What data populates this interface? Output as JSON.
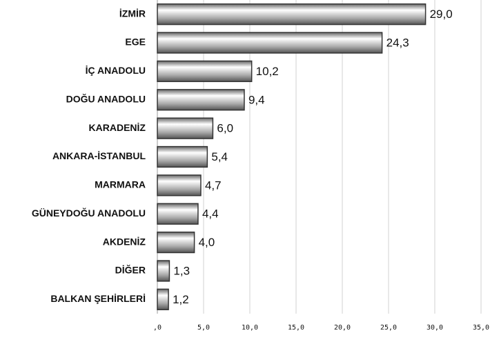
{
  "chart_data": {
    "type": "hbar",
    "categories": [
      "İZMİR",
      "EGE",
      "İÇ ANADOLU",
      "DOĞU ANADOLU",
      "KARADENİZ",
      "ANKARA-İSTANBUL",
      "MARMARA",
      "GÜNEYDOĞU ANADOLU",
      "AKDENİZ",
      "DİĞER",
      "BALKAN ŞEHİRLERİ"
    ],
    "values": [
      29.0,
      24.3,
      10.2,
      9.4,
      6.0,
      5.4,
      4.7,
      4.4,
      4.0,
      1.3,
      1.2
    ],
    "value_labels": [
      "29,0",
      "24,3",
      "10,2",
      "9,4",
      "6,0",
      "5,4",
      "4,7",
      "4,4",
      "4,0",
      "1,3",
      "1,2"
    ],
    "color": "#a8a8a8",
    "xlim": [
      0,
      35
    ],
    "xticks": [
      {
        "value": 0,
        "label": ",0"
      },
      {
        "value": 5,
        "label": "5,0"
      },
      {
        "value": 10,
        "label": "10,0"
      },
      {
        "value": 15,
        "label": "15,0"
      },
      {
        "value": 20,
        "label": "20,0"
      },
      {
        "value": 25,
        "label": "25,0"
      },
      {
        "value": 30,
        "label": "30,0"
      },
      {
        "value": 35,
        "label": "35,0"
      }
    ],
    "grid": true
  }
}
